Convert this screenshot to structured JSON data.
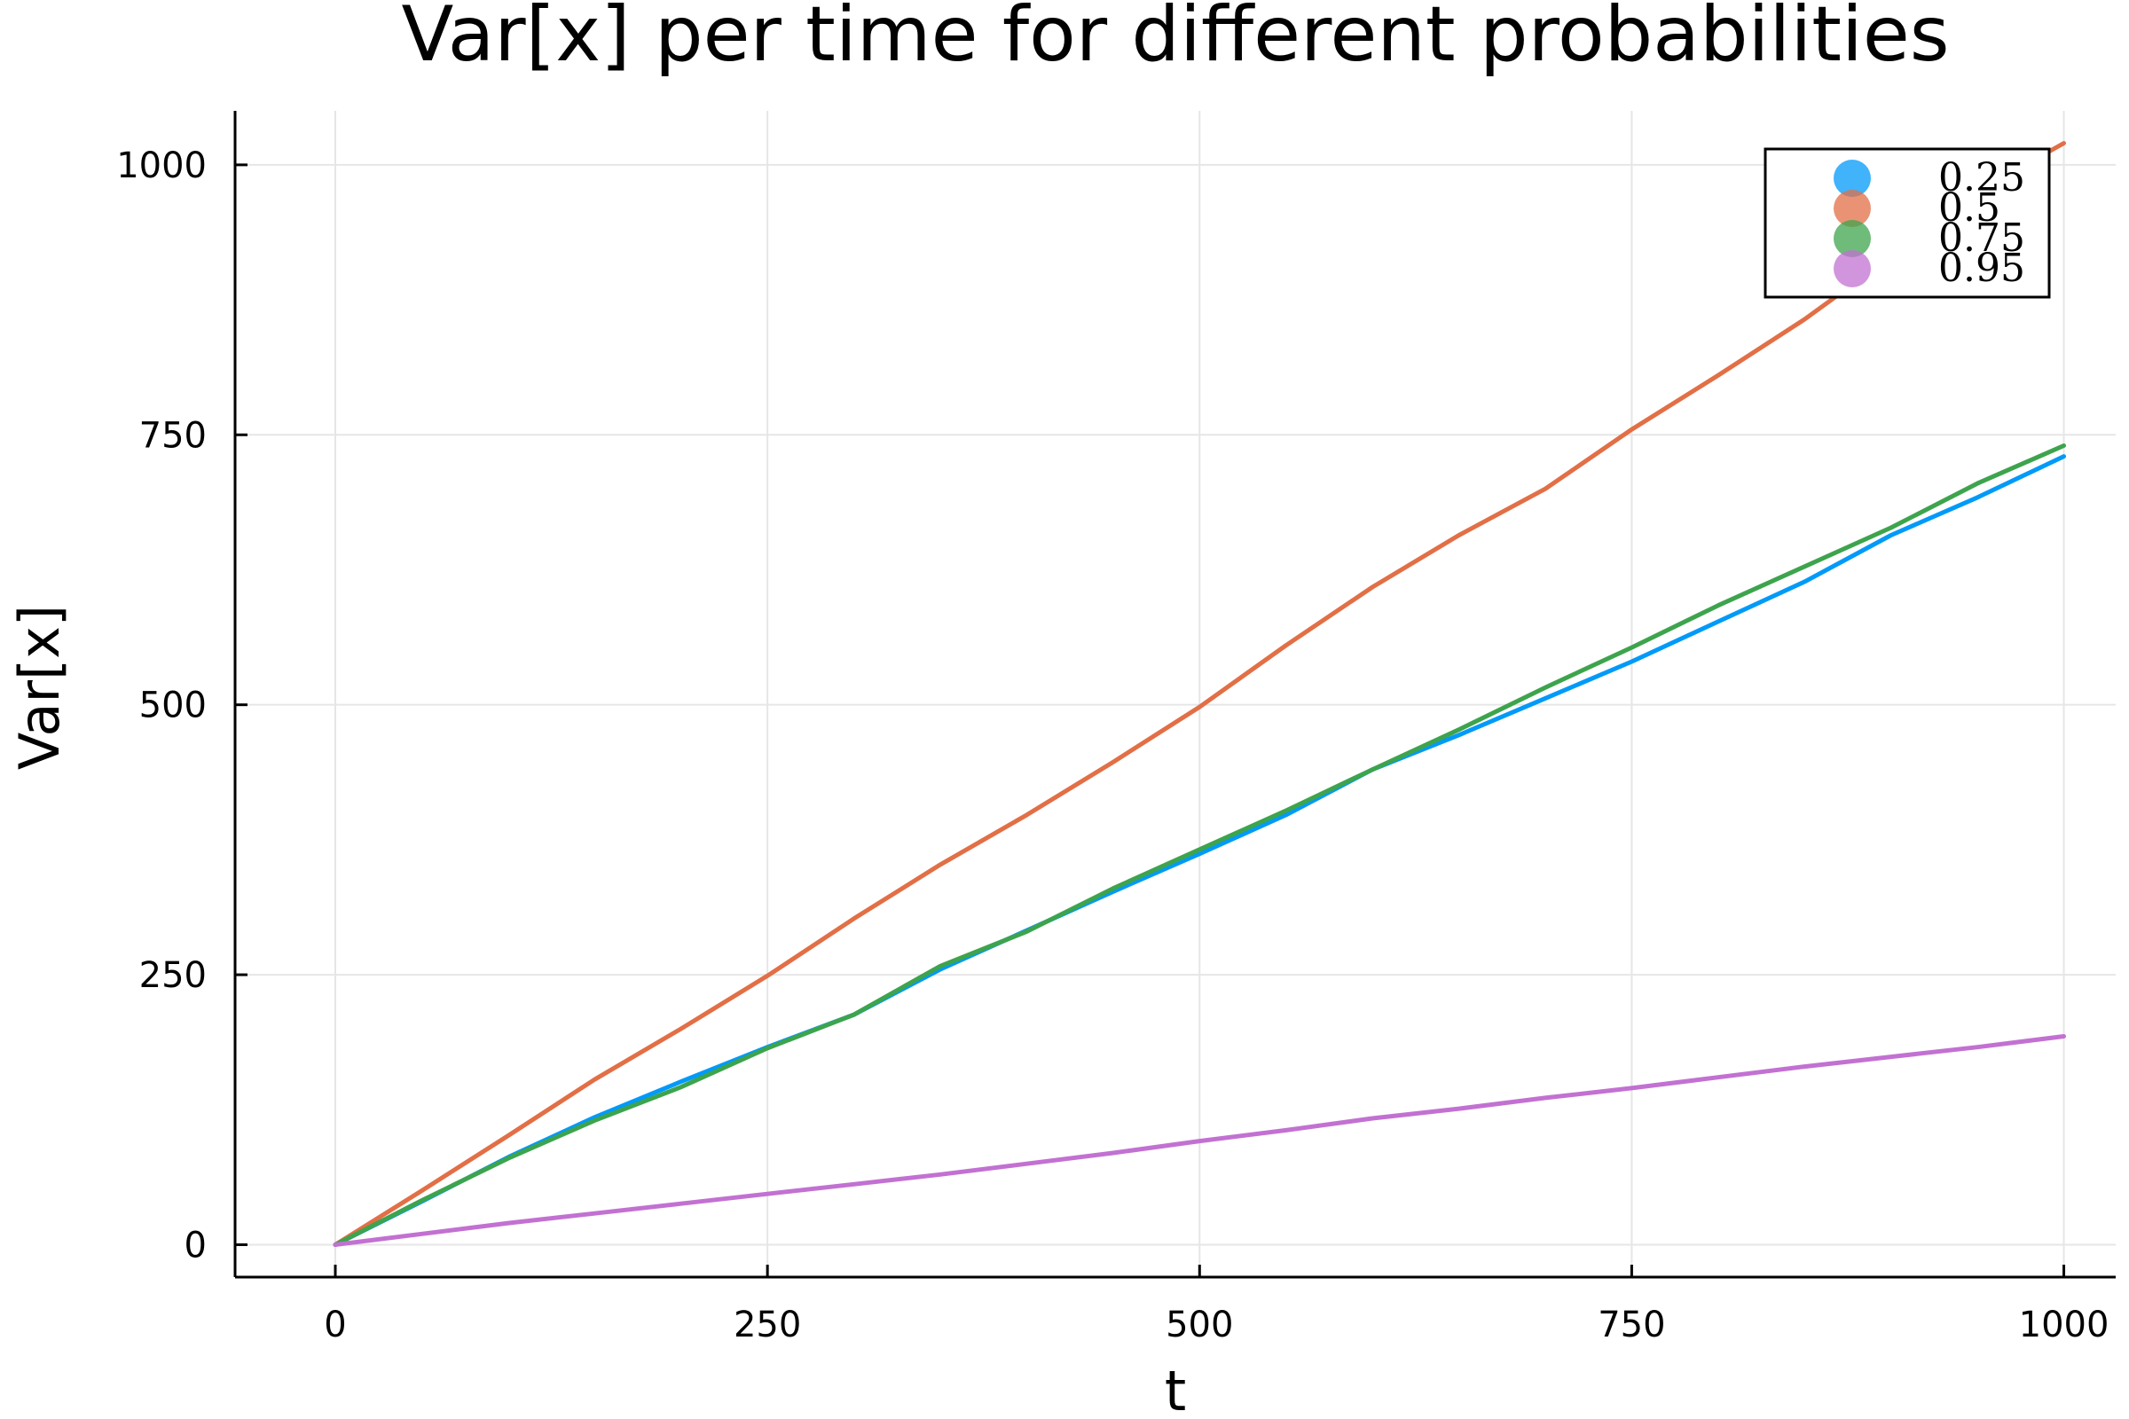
{
  "chart_data": {
    "type": "line",
    "title": "Var[x] per time  for different probabilities",
    "xlabel": "t",
    "ylabel": "Var[x]",
    "xlim": [
      -58,
      1030
    ],
    "ylim": [
      -30,
      1050
    ],
    "xticks": [
      0,
      250,
      500,
      750,
      1000
    ],
    "yticks": [
      0,
      250,
      500,
      750,
      1000
    ],
    "xtick_labels": [
      "0",
      "250",
      "500",
      "750",
      "1000"
    ],
    "ytick_labels": [
      "0",
      "250",
      "500",
      "750",
      "1000"
    ],
    "grid": true,
    "legend_position": "top-right",
    "series": [
      {
        "name": "0.25",
        "color": "#009af9",
        "x": [
          0,
          50,
          100,
          150,
          200,
          250,
          300,
          350,
          400,
          450,
          500,
          550,
          600,
          650,
          700,
          750,
          800,
          850,
          900,
          950,
          1000
        ],
        "y": [
          0,
          40,
          81,
          118,
          151,
          183,
          213,
          255,
          291,
          327,
          362,
          398,
          440,
          472,
          506,
          540,
          577,
          614,
          657,
          692,
          730
        ]
      },
      {
        "name": "0.5",
        "color": "#e26f46",
        "x": [
          0,
          50,
          100,
          150,
          200,
          250,
          300,
          350,
          400,
          450,
          500,
          550,
          600,
          650,
          700,
          750,
          800,
          850,
          900,
          950,
          1000
        ],
        "y": [
          0,
          50,
          101,
          153,
          200,
          249,
          302,
          352,
          398,
          447,
          498,
          555,
          609,
          657,
          700,
          755,
          805,
          857,
          915,
          975,
          1020
        ]
      },
      {
        "name": "0.75",
        "color": "#3da44d",
        "x": [
          0,
          50,
          100,
          150,
          200,
          250,
          300,
          350,
          400,
          450,
          500,
          550,
          600,
          650,
          700,
          750,
          800,
          850,
          900,
          950,
          1000
        ],
        "y": [
          0,
          41,
          80,
          115,
          146,
          182,
          213,
          258,
          290,
          330,
          366,
          402,
          440,
          477,
          516,
          553,
          592,
          628,
          664,
          705,
          740
        ]
      },
      {
        "name": "0.95",
        "color": "#c271d2",
        "x": [
          0,
          50,
          100,
          150,
          200,
          250,
          300,
          350,
          400,
          450,
          500,
          550,
          600,
          650,
          700,
          750,
          800,
          850,
          900,
          950,
          1000
        ],
        "y": [
          0,
          10,
          20,
          29,
          38,
          47,
          56,
          65,
          75,
          85,
          96,
          106,
          117,
          126,
          136,
          145,
          155,
          165,
          174,
          183,
          193
        ]
      }
    ]
  }
}
